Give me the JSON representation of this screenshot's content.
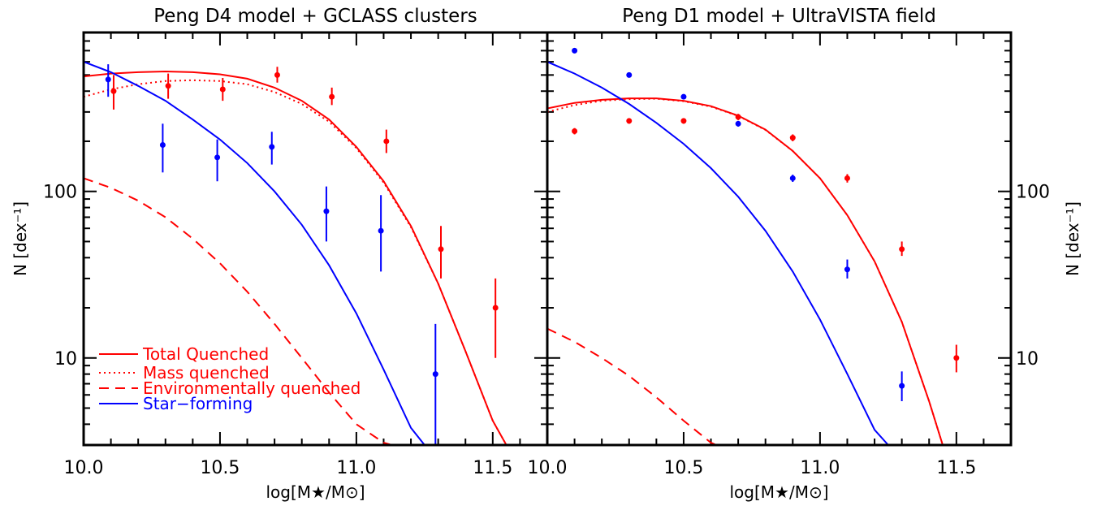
{
  "chart_data": [
    {
      "type": "line",
      "title": "Peng D4 model + GCLASS clusters",
      "xlabel": "log[M★/M⊙]",
      "ylabel": "N [dex⁻¹]",
      "xlim": [
        10.0,
        11.7
      ],
      "ylim": [
        3,
        900
      ],
      "y_scale": "log",
      "x_ticks": [
        "10.0",
        "10.5",
        "11.0",
        "11.5"
      ],
      "y_ticks": [
        "10",
        "100"
      ],
      "legend_position": "bottom-left",
      "series": [
        {
          "name": "Total Quenched",
          "kind": "line",
          "style": "solid",
          "color": "#ff0000",
          "x": [
            10.0,
            10.1,
            10.2,
            10.3,
            10.4,
            10.5,
            10.6,
            10.7,
            10.8,
            10.9,
            11.0,
            11.1,
            11.2,
            11.3,
            11.4,
            11.5,
            11.55
          ],
          "y": [
            490,
            510,
            520,
            525,
            520,
            505,
            475,
            420,
            350,
            270,
            185,
            115,
            62,
            28,
            11,
            4.2,
            3
          ]
        },
        {
          "name": "Mass quenched",
          "kind": "line",
          "style": "dotted",
          "color": "#ff0000",
          "x": [
            10.0,
            10.1,
            10.2,
            10.3,
            10.4,
            10.5,
            10.6,
            10.7,
            10.8,
            10.9,
            11.0,
            11.1,
            11.2,
            11.3,
            11.4,
            11.5,
            11.55
          ],
          "y": [
            370,
            410,
            440,
            460,
            465,
            460,
            440,
            395,
            335,
            262,
            182,
            113,
            61,
            28,
            11,
            4.2,
            3
          ]
        },
        {
          "name": "Environmentally quenched",
          "kind": "line",
          "style": "dashed",
          "color": "#ff0000",
          "x": [
            10.0,
            10.1,
            10.2,
            10.3,
            10.4,
            10.5,
            10.6,
            10.7,
            10.8,
            10.9,
            11.0,
            11.1,
            11.13
          ],
          "y": [
            120,
            105,
            88,
            70,
            52,
            37,
            25,
            16,
            10,
            6.2,
            4.0,
            3.1,
            3
          ]
        },
        {
          "name": "Star-forming",
          "kind": "line",
          "style": "solid",
          "color": "#0000ff",
          "x": [
            10.0,
            10.1,
            10.2,
            10.3,
            10.4,
            10.5,
            10.6,
            10.7,
            10.8,
            10.9,
            11.0,
            11.1,
            11.2,
            11.25
          ],
          "y": [
            600,
            520,
            430,
            350,
            270,
            205,
            148,
            100,
            63,
            36,
            18.5,
            8.5,
            3.8,
            3
          ]
        },
        {
          "kind": "points",
          "color": "#ff0000",
          "x": [
            10.11,
            10.31,
            10.51,
            10.71,
            10.91,
            11.11,
            11.31,
            11.51
          ],
          "y": [
            400,
            430,
            410,
            500,
            370,
            200,
            45,
            20
          ],
          "err_lo": [
            310,
            360,
            350,
            450,
            330,
            170,
            30,
            10
          ],
          "err_hi": [
            500,
            510,
            480,
            560,
            420,
            235,
            62,
            30
          ]
        },
        {
          "kind": "points",
          "color": "#0000ff",
          "x": [
            10.09,
            10.29,
            10.49,
            10.69,
            10.89,
            11.09,
            11.29
          ],
          "y": [
            470,
            190,
            160,
            185,
            76,
            58,
            8
          ],
          "err_lo": [
            370,
            130,
            115,
            145,
            50,
            33,
            3
          ],
          "err_hi": [
            580,
            255,
            205,
            228,
            107,
            95,
            16
          ]
        }
      ]
    },
    {
      "type": "line",
      "title": "Peng D1 model + UltraVISTA field",
      "xlabel": "log[M★/M⊙]",
      "ylabel": "N [dex⁻¹]",
      "xlim": [
        10.0,
        11.7
      ],
      "ylim": [
        3,
        900
      ],
      "y_scale": "log",
      "x_ticks": [
        "10.0",
        "10.5",
        "11.0",
        "11.5"
      ],
      "y_ticks": [
        "10",
        "100"
      ],
      "series": [
        {
          "name": "Total Quenched",
          "kind": "line",
          "style": "solid",
          "color": "#ff0000",
          "x": [
            10.0,
            10.1,
            10.2,
            10.3,
            10.4,
            10.5,
            10.6,
            10.7,
            10.8,
            10.9,
            11.0,
            11.1,
            11.2,
            11.3,
            11.4,
            11.45
          ],
          "y": [
            315,
            340,
            355,
            362,
            362,
            350,
            325,
            285,
            235,
            175,
            120,
            72,
            38,
            16.5,
            5.5,
            3
          ]
        },
        {
          "name": "Mass quenched",
          "kind": "line",
          "style": "dotted",
          "color": "#ff0000",
          "x": [
            10.0,
            10.1,
            10.2,
            10.3,
            10.4,
            10.5,
            10.6,
            10.7,
            10.8,
            10.9,
            11.0,
            11.1,
            11.2,
            11.3,
            11.4,
            11.45
          ],
          "y": [
            300,
            330,
            350,
            358,
            360,
            348,
            323,
            284,
            234,
            175,
            120,
            72,
            38,
            16.5,
            5.5,
            3
          ]
        },
        {
          "name": "Environmentally quenched",
          "kind": "line",
          "style": "dashed",
          "color": "#ff0000",
          "x": [
            10.0,
            10.1,
            10.2,
            10.3,
            10.4,
            10.5,
            10.6,
            10.62
          ],
          "y": [
            15,
            12.5,
            10,
            7.8,
            5.8,
            4.2,
            3.1,
            3
          ]
        },
        {
          "name": "Star-forming",
          "kind": "line",
          "style": "solid",
          "color": "#0000ff",
          "x": [
            10.0,
            10.1,
            10.2,
            10.3,
            10.4,
            10.5,
            10.6,
            10.7,
            10.8,
            10.9,
            11.0,
            11.1,
            11.2,
            11.25
          ],
          "y": [
            600,
            510,
            420,
            335,
            258,
            193,
            138,
            93,
            58,
            33,
            17,
            8,
            3.7,
            3
          ]
        },
        {
          "kind": "points",
          "color": "#ff0000",
          "x": [
            10.1,
            10.3,
            10.5,
            10.7,
            10.9,
            11.1,
            11.3,
            11.5
          ],
          "y": [
            230,
            265,
            265,
            280,
            210,
            120,
            45,
            10
          ],
          "err_lo": [
            220,
            255,
            255,
            268,
            200,
            113,
            41,
            8.2
          ],
          "err_hi": [
            240,
            275,
            275,
            292,
            220,
            127,
            50,
            12
          ]
        },
        {
          "kind": "points",
          "color": "#0000ff",
          "x": [
            10.1,
            10.3,
            10.5,
            10.7,
            10.9,
            11.1,
            11.3
          ],
          "y": [
            700,
            500,
            370,
            255,
            120,
            34,
            6.8
          ],
          "err_lo": [
            680,
            487,
            358,
            245,
            114,
            30,
            5.5
          ],
          "err_hi": [
            720,
            513,
            382,
            265,
            126,
            39,
            8.3
          ]
        }
      ]
    }
  ],
  "legend": {
    "entries": [
      {
        "label": "Total Quenched",
        "color": "#ff0000",
        "style": "solid"
      },
      {
        "label": "Mass quenched",
        "color": "#ff0000",
        "style": "dotted"
      },
      {
        "label": "Environmentally quenched",
        "color": "#ff0000",
        "style": "dashed"
      },
      {
        "label": "Star−forming",
        "color": "#0000ff",
        "style": "solid"
      }
    ]
  }
}
